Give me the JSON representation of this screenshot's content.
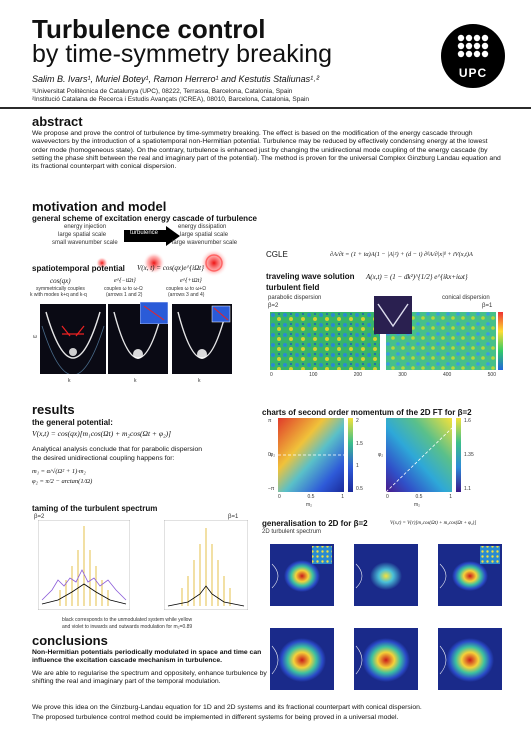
{
  "header": {
    "title": "Turbulence control",
    "subtitle": "by time-symmetry breaking",
    "authors": "Salim B. Ivars¹, Muriel Botey¹, Ramon Herrero¹ and Kestutis Staliunas¹˒²",
    "affiliation_1": "¹Universitat Politècnica de Catalunya (UPC), 08222, Terrassa, Barcelona, Catalonia, Spain",
    "affiliation_2": "²Institució Catalana de Recerca i Estudis Avançats (ICREA), 08010, Barcelona, Catalonia, Spain",
    "logo": "UPC"
  },
  "abstract": {
    "heading": "abstract",
    "text": "We propose and prove the control of turbulence by time-symmetry breaking. The effect is based on the modification of the energy cascade through wavevectors by the introduction of a spatiotemporal non-Hermitian potential. Turbulence may be reduced by effectively condensing energy at the lowest order mode (homogeneous state). On the contrary, turbulence is enhanced just by changing the unidirectional mode coupling of the energy cascade (by setting the phase shift between the real and imaginary part of the potential). The method is proven for the universal Complex Ginzburg Landau equation and its fractional counterpart with conical dispersion."
  },
  "motivation": {
    "heading": "motivation and model",
    "scheme_title": "general scheme of excitation energy cascade of turbulence",
    "injection": "energy injection",
    "injection_1": "large spatial scale",
    "injection_2": "small wavenumber scale",
    "turbulence_label": "turbulence",
    "dissipation": "energy dissipation",
    "dissipation_1": "large spatial scale",
    "dissipation_2": "large wavenumber scale",
    "potential_title": "spatiotemporal potential",
    "potential_eq": "V(x, t) = cos(qx)e^{iΩt}",
    "cos_label": "cos(qx)",
    "cos_desc_1": "symmetrically couples",
    "cos_desc_2": "k with modes k+q and k-q",
    "em_label": "e^{−iΩt}",
    "em_desc_1": "couples ω to ω-Ω",
    "em_desc_2": "(arrows 1 and 2)",
    "ep_label": "e^{+iΩt}",
    "ep_desc_1": "couples ω to ω+Ω",
    "ep_desc_2": "(arrows 3 and 4)",
    "axis_k": "k",
    "axis_w": "ω"
  },
  "cgle": {
    "label": "CGLE",
    "equation": "∂A/∂t = (1 + iα)A(1 − |A|²) + (d − i) ∂ᵝA/∂|x|ᵝ + iV(x,t)A",
    "wave_title_1": "traveling wave solution",
    "wave_title_2": "turbulent field",
    "wave_eq": "A(x,t) = (1 − dk²)^{1/2} e^{ikx+iωt}",
    "parabolic": "parabolic dispersion",
    "beta2": "β=2",
    "conical": "conical dispersion",
    "beta1": "β=1"
  },
  "results": {
    "heading": "results",
    "potential_title": "the general potential:",
    "potential_eq": "V(x,t) = cos(qx)[m₁cos(Ωt) + m₂cos(Ωt + φ₂)]",
    "analytical_1": "Analytical analysis conclude that for parabolic dispersion",
    "analytical_2": "the desired unidirectional coupling happens for:",
    "cond_1": "m₁ = α/√(Ω² + 1)·m₂",
    "cond_2": "φ₂ = π/2 − arctan(1/Ω)",
    "taming_title": "taming of the turbulent spectrum",
    "taming_b2": "β=2",
    "taming_b1": "β=1",
    "caption_1": "black corresponds to the unmodulated system while yellow",
    "caption_2": "and violet to inwards and outwards modulation for m₂=0.89",
    "charts_title": "charts of second order momentum of the 2D FT for β=2",
    "axis_m2": "m₂",
    "axis_phi": "φ₂",
    "gen2d_title": "generalisation to 2D for β=2",
    "gen2d_sub": "2D turbulent spectrum",
    "gen2d_eq": "V(x,t) = V(r)[m₁cos(Ωt) + m₂cos(Ωt + φ₂)]"
  },
  "conclusions": {
    "heading": "conclusions",
    "line_1": "Non-Hermitian potentials periodically modulated in space and time can influence the excitation cascade mechanism in turbulence.",
    "line_2": "We are able to regularise the spectrum and oppositely, enhance turbulence by shifting the real and imaginary part of the temporal modulation.",
    "line_3": "We prove this idea on the Ginzburg-Landau equation for 1D and 2D systems and its fractional counterpart with conical dispersion.",
    "line_4": "The proposed turbulence control method could be implemented in different systems for being proved in a universal model."
  },
  "ticks": {
    "cbar_1": [
      "2",
      "1.5",
      "1",
      "0.5"
    ],
    "cbar_2": [
      "1.6",
      "1.35",
      "1.1"
    ],
    "phi": [
      "π",
      "0",
      "−π"
    ],
    "m2": [
      "0",
      "0.5",
      "1"
    ],
    "wave": [
      "0",
      "100",
      "200",
      "300",
      "400",
      "500"
    ]
  },
  "colors": {
    "rule": "#2b2b2b",
    "accent": "#000000"
  }
}
